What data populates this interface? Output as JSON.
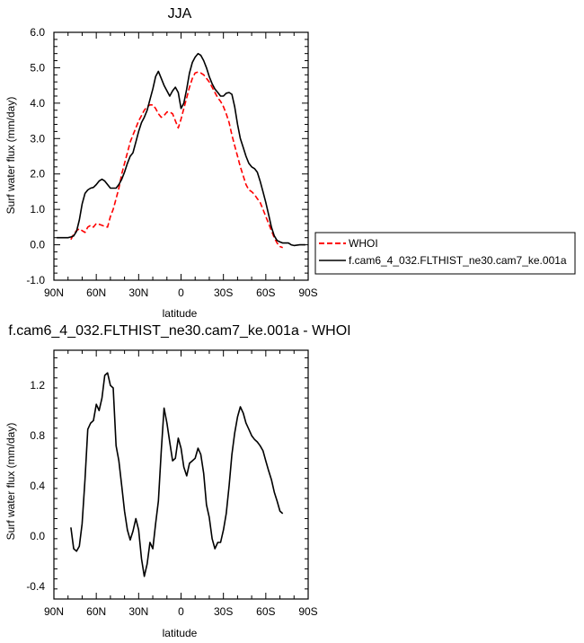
{
  "chart_data": [
    {
      "type": "line",
      "title": "JJA",
      "xlabel": "latitude",
      "ylabel": "Surf water flux (mm/day)",
      "xlim": [
        90,
        -90
      ],
      "ylim": [
        -1.0,
        6.0
      ],
      "x_tick_labels": [
        "90N",
        "60N",
        "30N",
        "0",
        "30S",
        "60S",
        "90S"
      ],
      "y_tick_labels": [
        "-1.0",
        "0.0",
        "1.0",
        "2.0",
        "3.0",
        "4.0",
        "5.0",
        "6.0"
      ],
      "grid": false,
      "legend_position": "right",
      "series": [
        {
          "name": "WHOI",
          "color": "#ff0000",
          "dash": "dashed",
          "x": [
            78,
            76,
            74,
            72,
            70,
            68,
            66,
            64,
            62,
            60,
            58,
            56,
            54,
            52,
            50,
            48,
            46,
            44,
            42,
            40,
            38,
            36,
            34,
            32,
            30,
            28,
            26,
            24,
            22,
            20,
            18,
            16,
            14,
            12,
            10,
            8,
            6,
            4,
            2,
            0,
            -2,
            -4,
            -6,
            -8,
            -10,
            -12,
            -14,
            -16,
            -18,
            -20,
            -22,
            -24,
            -26,
            -28,
            -30,
            -32,
            -34,
            -36,
            -38,
            -40,
            -42,
            -44,
            -46,
            -48,
            -50,
            -52,
            -54,
            -56,
            -58,
            -60,
            -62,
            -64,
            -66,
            -68,
            -70,
            -72
          ],
          "values": [
            0.15,
            0.3,
            0.4,
            0.45,
            0.4,
            0.35,
            0.5,
            0.55,
            0.5,
            0.6,
            0.58,
            0.55,
            0.52,
            0.5,
            0.8,
            1.0,
            1.3,
            1.6,
            2.0,
            2.3,
            2.6,
            2.9,
            3.1,
            3.3,
            3.5,
            3.65,
            3.8,
            3.9,
            3.95,
            3.95,
            3.85,
            3.7,
            3.6,
            3.65,
            3.75,
            3.75,
            3.7,
            3.5,
            3.3,
            3.55,
            3.85,
            4.15,
            4.45,
            4.7,
            4.85,
            4.88,
            4.85,
            4.8,
            4.7,
            4.6,
            4.45,
            4.3,
            4.15,
            4.05,
            3.9,
            3.7,
            3.45,
            3.1,
            2.8,
            2.5,
            2.2,
            1.95,
            1.7,
            1.55,
            1.5,
            1.42,
            1.3,
            1.2,
            1.0,
            0.8,
            0.6,
            0.4,
            0.2,
            0.05,
            -0.05,
            -0.08
          ]
        },
        {
          "name": "f.cam6_4_032.FLTHIST_ne30.cam7_ke.001a",
          "color": "#000000",
          "dash": "solid",
          "x": [
            88,
            84,
            80,
            78,
            76,
            74,
            72,
            70,
            68,
            66,
            64,
            62,
            60,
            58,
            56,
            54,
            52,
            50,
            48,
            46,
            44,
            42,
            40,
            38,
            36,
            34,
            32,
            30,
            28,
            26,
            24,
            22,
            20,
            18,
            16,
            14,
            12,
            10,
            8,
            6,
            4,
            2,
            0,
            -2,
            -4,
            -6,
            -8,
            -10,
            -12,
            -14,
            -16,
            -18,
            -20,
            -22,
            -24,
            -26,
            -28,
            -30,
            -32,
            -34,
            -36,
            -38,
            -40,
            -42,
            -44,
            -46,
            -48,
            -50,
            -52,
            -54,
            -56,
            -58,
            -60,
            -62,
            -64,
            -66,
            -68,
            -70,
            -72,
            -74,
            -76,
            -78,
            -80,
            -84,
            -88
          ],
          "values": [
            0.2,
            0.2,
            0.2,
            0.22,
            0.25,
            0.38,
            0.7,
            1.15,
            1.45,
            1.55,
            1.6,
            1.62,
            1.7,
            1.8,
            1.85,
            1.8,
            1.7,
            1.6,
            1.6,
            1.6,
            1.7,
            1.85,
            2.05,
            2.3,
            2.5,
            2.6,
            2.9,
            3.2,
            3.45,
            3.6,
            3.8,
            4.1,
            4.4,
            4.75,
            4.9,
            4.7,
            4.5,
            4.35,
            4.2,
            4.35,
            4.45,
            4.3,
            3.85,
            4.0,
            4.4,
            4.85,
            5.15,
            5.3,
            5.4,
            5.35,
            5.2,
            5.0,
            4.75,
            4.55,
            4.4,
            4.3,
            4.2,
            4.2,
            4.28,
            4.3,
            4.25,
            3.9,
            3.4,
            3.0,
            2.75,
            2.5,
            2.3,
            2.2,
            2.15,
            2.05,
            1.8,
            1.5,
            1.2,
            0.85,
            0.5,
            0.25,
            0.12,
            0.08,
            0.05,
            0.05,
            0.05,
            0.0,
            -0.02,
            0.0,
            0.0
          ]
        }
      ]
    },
    {
      "type": "line",
      "title": "f.cam6_4_032.FLTHIST_ne30.cam7_ke.001a - WHOI",
      "xlabel": "latitude",
      "ylabel": "Surf water flux (mm/day)",
      "xlim": [
        90,
        -90
      ],
      "ylim": [
        -0.5,
        1.48
      ],
      "x_tick_labels": [
        "90N",
        "60N",
        "30N",
        "0",
        "30S",
        "60S",
        "90S"
      ],
      "y_tick_labels": [
        "-0.4",
        "0.0",
        "0.4",
        "0.8",
        "1.2"
      ],
      "y_tick_values": [
        -0.4,
        0.0,
        0.4,
        0.8,
        1.2
      ],
      "grid": false,
      "series": [
        {
          "color": "#000000",
          "dash": "solid",
          "x": [
            78,
            76,
            74,
            72,
            70,
            68,
            66,
            64,
            62,
            60,
            58,
            56,
            54,
            52,
            50,
            48,
            46,
            44,
            42,
            40,
            38,
            36,
            34,
            32,
            30,
            28,
            26,
            24,
            22,
            20,
            18,
            16,
            14,
            12,
            10,
            8,
            6,
            4,
            2,
            0,
            -2,
            -4,
            -6,
            -8,
            -10,
            -12,
            -14,
            -16,
            -18,
            -20,
            -22,
            -24,
            -26,
            -28,
            -30,
            -32,
            -34,
            -36,
            -38,
            -40,
            -42,
            -44,
            -46,
            -48,
            -50,
            -52,
            -54,
            -56,
            -58,
            -60,
            -62,
            -64,
            -66,
            -68,
            -70,
            -72
          ],
          "values": [
            0.07,
            -0.1,
            -0.12,
            -0.08,
            0.1,
            0.45,
            0.85,
            0.9,
            0.92,
            1.05,
            1.0,
            1.1,
            1.28,
            1.3,
            1.2,
            1.18,
            0.72,
            0.6,
            0.4,
            0.2,
            0.05,
            -0.03,
            0.04,
            0.14,
            0.05,
            -0.18,
            -0.32,
            -0.22,
            -0.05,
            -0.1,
            0.1,
            0.28,
            0.68,
            1.02,
            0.9,
            0.75,
            0.6,
            0.62,
            0.78,
            0.7,
            0.55,
            0.48,
            0.58,
            0.6,
            0.62,
            0.7,
            0.65,
            0.5,
            0.25,
            0.15,
            -0.02,
            -0.1,
            -0.05,
            -0.05,
            0.05,
            0.18,
            0.4,
            0.65,
            0.82,
            0.95,
            1.03,
            0.98,
            0.9,
            0.85,
            0.8,
            0.77,
            0.75,
            0.72,
            0.68,
            0.6,
            0.52,
            0.45,
            0.35,
            0.28,
            0.2,
            0.18
          ]
        }
      ]
    }
  ]
}
